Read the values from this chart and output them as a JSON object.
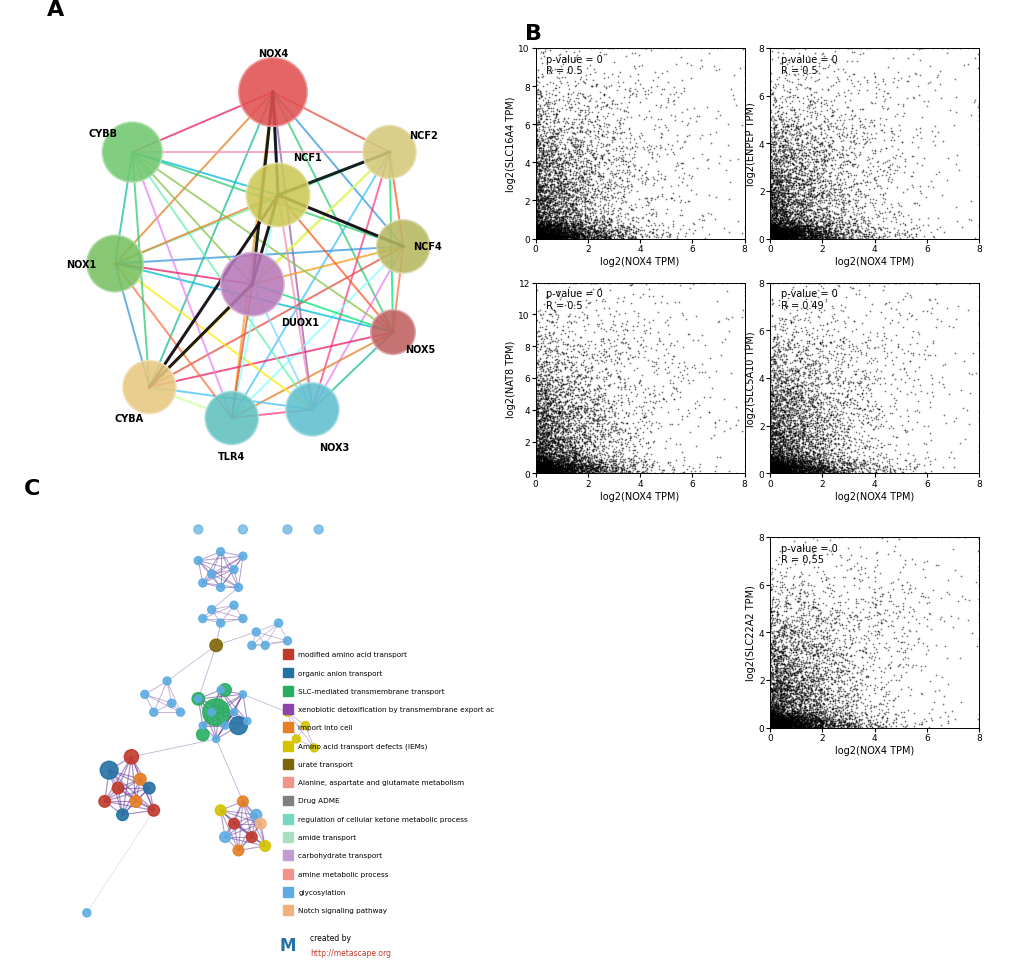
{
  "panels": {
    "A": {
      "label": "A"
    },
    "B": {
      "label": "B",
      "scatter_plots": [
        {
          "xlabel": "log2(NOX4 TPM)",
          "ylabel": "log2(SLC16A4 TPM)",
          "pvalue_text": "p-value = 0",
          "R_text": "R = 0.5",
          "xlim": [
            0,
            8
          ],
          "ylim": [
            0,
            10
          ],
          "yticks": [
            0,
            2,
            4,
            6,
            8,
            10
          ],
          "xticks": [
            0,
            2,
            4,
            6,
            8
          ],
          "seed": 42
        },
        {
          "xlabel": "log2(NOX4 TPM)",
          "ylabel": "log2(ENPEP TPM)",
          "pvalue_text": "p-value = 0",
          "R_text": "R = 0.5",
          "xlim": [
            0,
            8
          ],
          "ylim": [
            0,
            8
          ],
          "yticks": [
            0,
            2,
            4,
            6,
            8
          ],
          "xticks": [
            0,
            2,
            4,
            6,
            8
          ],
          "seed": 123
        },
        {
          "xlabel": "log2(NOX4 TPM)",
          "ylabel": "log2(NAT8 TPM)",
          "pvalue_text": "p-value = 0",
          "R_text": "R = 0.5",
          "xlim": [
            0,
            8
          ],
          "ylim": [
            0,
            12
          ],
          "yticks": [
            0,
            2,
            4,
            6,
            8,
            10,
            12
          ],
          "xticks": [
            0,
            2,
            4,
            6,
            8
          ],
          "seed": 77
        },
        {
          "xlabel": "log2(NOX4 TPM)",
          "ylabel": "log2(SLC5A10 TPM)",
          "pvalue_text": "p-value = 0",
          "R_text": "R = 0.49",
          "xlim": [
            0,
            8
          ],
          "ylim": [
            0,
            8
          ],
          "yticks": [
            0,
            2,
            4,
            6,
            8
          ],
          "xticks": [
            0,
            2,
            4,
            6,
            8
          ],
          "seed": 55
        },
        {
          "xlabel": "log2(NOX4 TPM)",
          "ylabel": "log2(SLC22A2 TPM)",
          "pvalue_text": "p-value = 0",
          "R_text": "R = 0,55",
          "xlim": [
            0,
            8
          ],
          "ylim": [
            0,
            8
          ],
          "yticks": [
            0,
            2,
            4,
            6,
            8
          ],
          "xticks": [
            0,
            2,
            4,
            6,
            8
          ],
          "seed": 99
        }
      ]
    },
    "C": {
      "label": "C",
      "legend_items": [
        {
          "color": "#c0392b",
          "label": "modified amino acid transport"
        },
        {
          "color": "#2471a3",
          "label": "organic anion transport"
        },
        {
          "color": "#27ae60",
          "label": "SLC-mediated transmembrane transport"
        },
        {
          "color": "#8e44ad",
          "label": "xenobiotic detoxification by transmembrane export ac"
        },
        {
          "color": "#e67e22",
          "label": "import into cell"
        },
        {
          "color": "#d4c400",
          "label": "Amino acid transport defects (IEMs)"
        },
        {
          "color": "#7d6608",
          "label": "urate transport"
        },
        {
          "color": "#f1948a",
          "label": "Alanine, aspartate and glutamate metabolism"
        },
        {
          "color": "#808080",
          "label": "Drug ADME"
        },
        {
          "color": "#76d7c4",
          "label": "regulation of cellular ketone metabolic process"
        },
        {
          "color": "#a9dfbf",
          "label": "amide transport"
        },
        {
          "color": "#c39bd3",
          "label": "carbohydrate transport"
        },
        {
          "color": "#f1948a",
          "label": "amine metabolic process"
        },
        {
          "color": "#5dade2",
          "label": "glycosylation"
        },
        {
          "color": "#f0b27a",
          "label": "Notch signaling pathway"
        }
      ]
    }
  }
}
